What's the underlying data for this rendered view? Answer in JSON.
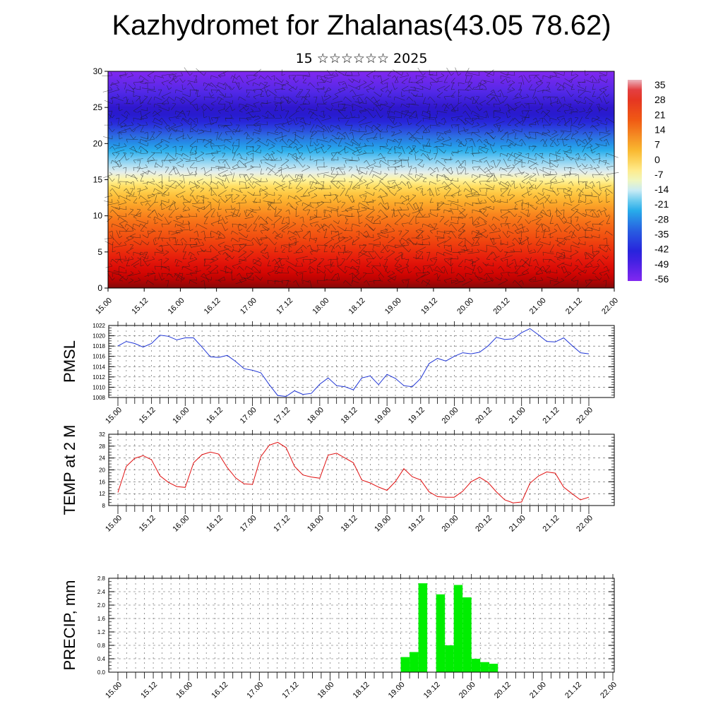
{
  "title": "Kazhydromet for Zhalanas(43.05 78.62)",
  "subtitle": "15 ☆☆☆☆☆☆ 2025",
  "time_labels": [
    "15.00",
    "15.12",
    "16.00",
    "16.12",
    "17.00",
    "17.12",
    "18.00",
    "18.12",
    "19.00",
    "19.12",
    "20.00",
    "20.12",
    "21.00",
    "21.12",
    "22.00"
  ],
  "chart_data": [
    {
      "type": "heatmap",
      "y_ticks": [
        "0",
        "5",
        "10",
        "15",
        "20",
        "25",
        "30"
      ],
      "ylim": [
        0,
        30
      ],
      "colorbar_labels": [
        "35",
        "28",
        "21",
        "14",
        "7",
        "0",
        "-7",
        "-14",
        "-21",
        "-28",
        "-35",
        "-42",
        "-49",
        "-56"
      ],
      "colors": {
        "warm": "#e81010",
        "neutral": "#fff8b0",
        "cold": "#7a1cf0"
      },
      "overlay": "wind-barbs"
    },
    {
      "type": "line",
      "ylabel": "PMSL",
      "ylim": [
        1008,
        1022
      ],
      "y_ticks": [
        "1008",
        "1010",
        "1012",
        "1014",
        "1016",
        "1018",
        "1020",
        "1022"
      ],
      "color": "#1f35d6",
      "values": [
        1018.0,
        1018.9,
        1018.5,
        1017.8,
        1018.5,
        1020.1,
        1019.9,
        1019.2,
        1019.6,
        1019.6,
        1017.8,
        1015.9,
        1015.8,
        1016.2,
        1015.0,
        1013.6,
        1013.3,
        1012.8,
        1010.5,
        1008.4,
        1008.2,
        1009.3,
        1008.6,
        1008.8,
        1010.6,
        1011.8,
        1010.3,
        1010.1,
        1009.5,
        1011.8,
        1012.2,
        1010.5,
        1012.5,
        1011.7,
        1010.3,
        1010.1,
        1011.7,
        1014.6,
        1015.6,
        1015.1,
        1016.0,
        1016.7,
        1016.5,
        1016.8,
        1018.0,
        1019.7,
        1019.3,
        1019.4,
        1020.6,
        1021.4,
        1020.2,
        1018.9,
        1018.8,
        1019.6,
        1018.1,
        1016.7,
        1016.5
      ]
    },
    {
      "type": "line",
      "ylabel": "TEMP at 2 M",
      "ylim": [
        8,
        32
      ],
      "y_ticks": [
        "8",
        "12",
        "16",
        "20",
        "24",
        "28",
        "32"
      ],
      "color": "#e01010",
      "values": [
        12.4,
        21.2,
        23.9,
        24.8,
        23.4,
        18.0,
        15.8,
        14.4,
        14.1,
        22.4,
        25.1,
        26.0,
        25.3,
        20.8,
        17.3,
        15.3,
        15.1,
        24.5,
        28.3,
        29.3,
        27.5,
        21.2,
        18.3,
        17.6,
        17.2,
        25.0,
        25.6,
        24.0,
        22.4,
        16.6,
        15.6,
        14.2,
        13.1,
        16.1,
        20.4,
        17.7,
        16.6,
        12.6,
        11.0,
        10.8,
        10.8,
        12.8,
        16.0,
        17.5,
        15.8,
        12.6,
        9.9,
        8.9,
        9.2,
        15.5,
        17.9,
        19.3,
        18.9,
        14.2,
        12.0,
        9.9,
        10.8
      ]
    },
    {
      "type": "bar",
      "ylabel": "PRECIP, mm",
      "ylim": [
        0,
        2.8
      ],
      "y_ticks": [
        "0.0",
        "0.4",
        "0.8",
        "1.2",
        "1.6",
        "2.0",
        "2.4",
        "2.8"
      ],
      "color": "#00ee00",
      "values": [
        0,
        0,
        0,
        0,
        0,
        0,
        0,
        0,
        0,
        0,
        0,
        0,
        0,
        0,
        0,
        0,
        0,
        0,
        0,
        0,
        0,
        0,
        0,
        0,
        0,
        0,
        0,
        0,
        0,
        0,
        0,
        0,
        0.45,
        0.6,
        2.65,
        0,
        2.32,
        0.8,
        2.6,
        2.23,
        0.4,
        0.3,
        0.25,
        0,
        0,
        0,
        0,
        0,
        0,
        0,
        0,
        0,
        0,
        0,
        0,
        0
      ]
    }
  ]
}
